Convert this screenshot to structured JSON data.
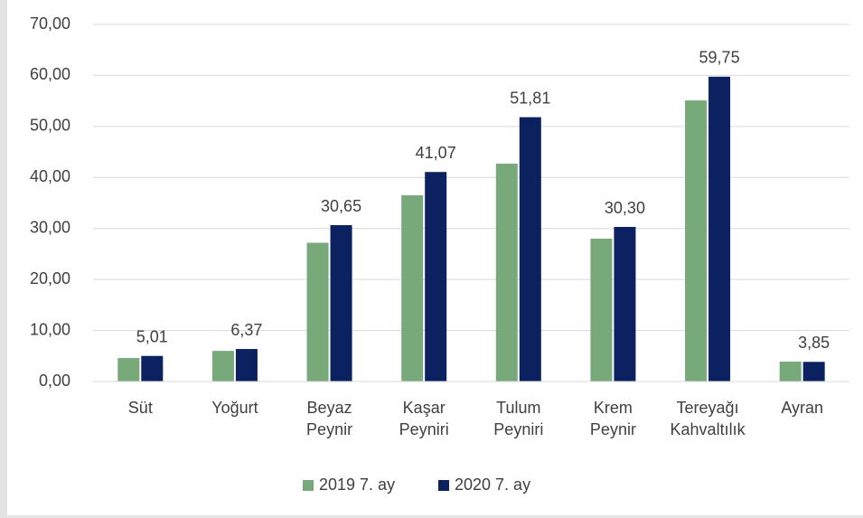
{
  "chart_data": {
    "type": "bar",
    "categories": [
      "Süt",
      "Yoğurt",
      "Beyaz Peynir",
      "Kaşar Peyniri",
      "Tulum Peyniri",
      "Krem Peynir",
      "Tereyağı Kahvaltılık",
      "Ayran"
    ],
    "series": [
      {
        "name": "2019 7. ay",
        "color": "#78a97a",
        "values": [
          4.6,
          6.0,
          27.2,
          36.5,
          42.7,
          28.0,
          55.1,
          3.9
        ]
      },
      {
        "name": "2020 7. ay",
        "color": "#0b2160",
        "values": [
          5.01,
          6.37,
          30.65,
          41.07,
          51.81,
          30.3,
          59.75,
          3.85
        ],
        "value_labels": [
          "5,01",
          "6,37",
          "30,65",
          "41,07",
          "51,81",
          "30,30",
          "59,75",
          "3,85"
        ]
      }
    ],
    "ylim": [
      0,
      70
    ],
    "yticks": [
      {
        "value": 0,
        "label": "0,00"
      },
      {
        "value": 10,
        "label": "10,00"
      },
      {
        "value": 20,
        "label": "20,00"
      },
      {
        "value": 30,
        "label": "30,00"
      },
      {
        "value": 40,
        "label": "40,00"
      },
      {
        "value": 50,
        "label": "50,00"
      },
      {
        "value": 60,
        "label": "60,00"
      },
      {
        "value": 70,
        "label": "70,00"
      }
    ],
    "grid": true,
    "legend": "bottom"
  }
}
